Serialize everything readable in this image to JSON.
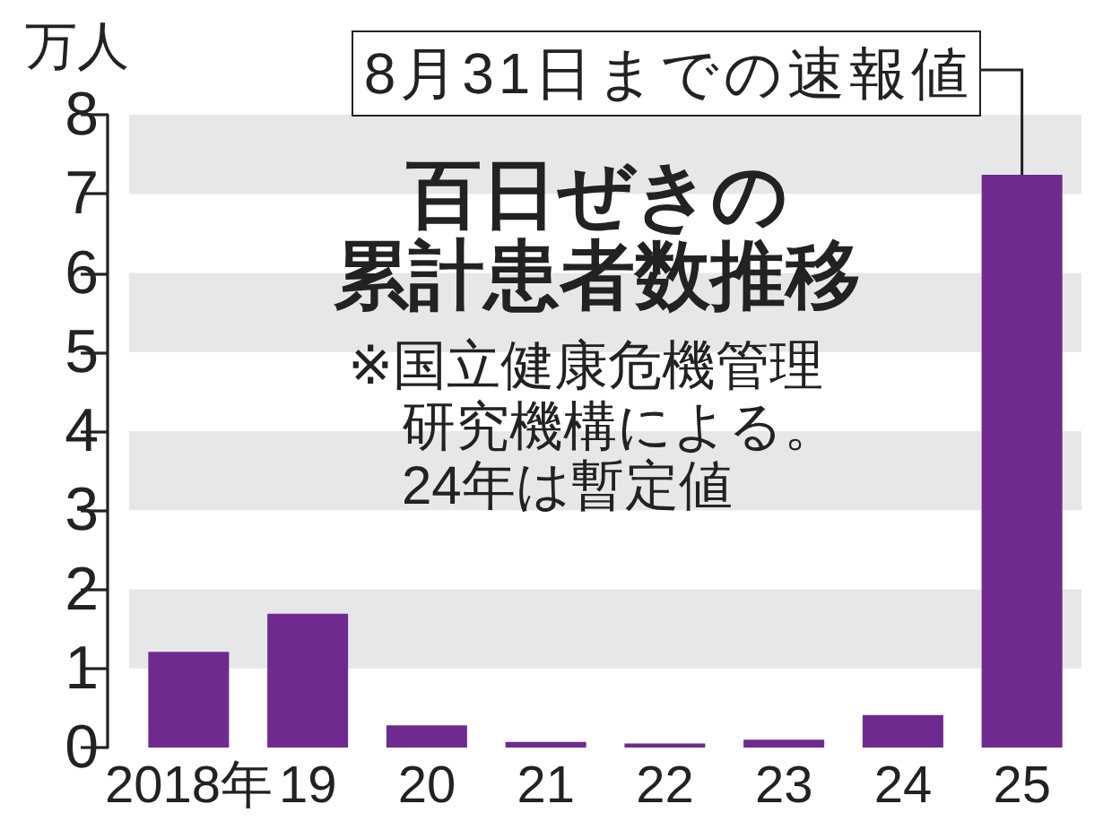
{
  "chart_data": {
    "type": "bar",
    "title": "百日ぜきの累計患者数推移",
    "ylabel": "万人",
    "categories": [
      "2018年",
      "19",
      "20",
      "21",
      "22",
      "23",
      "24",
      "25"
    ],
    "values": [
      1.21,
      1.69,
      0.28,
      0.07,
      0.05,
      0.1,
      0.41,
      7.24
    ],
    "color": "#6e2a8e",
    "ylim": [
      0,
      8
    ],
    "yticks": [
      0,
      1,
      2,
      3,
      4,
      5,
      6,
      7,
      8
    ],
    "bands": [
      {
        "axis": "y",
        "from": 1,
        "to": 2,
        "color": "#e6e7e8"
      },
      {
        "axis": "y",
        "from": 3,
        "to": 4,
        "color": "#e6e7e8"
      },
      {
        "axis": "y",
        "from": 5,
        "to": 6,
        "color": "#e6e7e8"
      },
      {
        "axis": "y",
        "from": 7,
        "to": 8,
        "color": "#e6e7e8"
      }
    ],
    "annotations": [
      {
        "text": "8月31日までの速報値",
        "x": "25",
        "y": 7.24
      },
      "※国立健康危機管理研究機構による。24年は暫定値"
    ]
  }
}
